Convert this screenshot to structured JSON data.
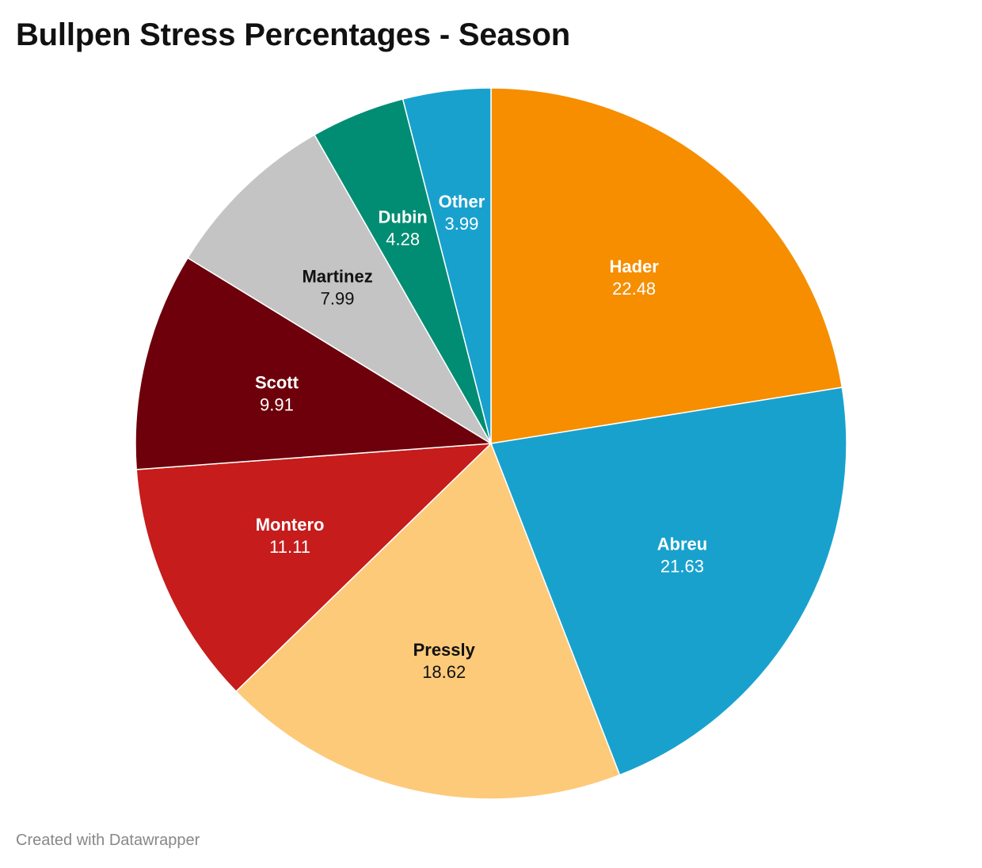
{
  "page": {
    "title": "Bullpen Stress Percentages - Season",
    "footer": "Created with Datawrapper"
  },
  "chart_data": {
    "type": "pie",
    "title": "Bullpen Stress Percentages - Season",
    "slices": [
      {
        "label": "Hader",
        "value": 22.48,
        "value_text": "22.48",
        "color": "#f68e00",
        "text_color": "#ffffff"
      },
      {
        "label": "Abreu",
        "value": 21.63,
        "value_text": "21.63",
        "color": "#19a1ce",
        "text_color": "#ffffff"
      },
      {
        "label": "Pressly",
        "value": 18.62,
        "value_text": "18.62",
        "color": "#fdca7a",
        "text_color": "#111111"
      },
      {
        "label": "Montero",
        "value": 11.11,
        "value_text": "11.11",
        "color": "#c61c1c",
        "text_color": "#ffffff"
      },
      {
        "label": "Scott",
        "value": 9.91,
        "value_text": "9.91",
        "color": "#6d000a",
        "text_color": "#ffffff"
      },
      {
        "label": "Martinez",
        "value": 7.99,
        "value_text": "7.99",
        "color": "#c4c4c4",
        "text_color": "#111111"
      },
      {
        "label": "Dubin",
        "value": 4.28,
        "value_text": "4.28",
        "color": "#008d73",
        "text_color": "#ffffff"
      },
      {
        "label": "Other",
        "value": 3.99,
        "value_text": "3.99",
        "color": "#19a1ce",
        "text_color": "#ffffff"
      }
    ]
  }
}
